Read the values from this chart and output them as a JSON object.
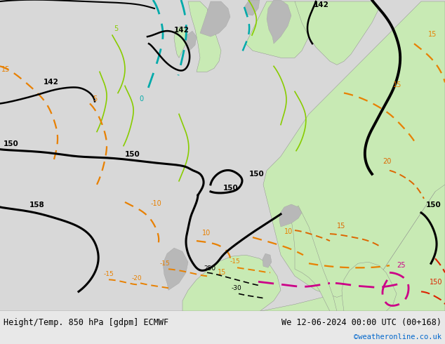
{
  "title_left": "Height/Temp. 850 hPa [gdpm] ECMWF",
  "title_right": "We 12-06-2024 00:00 UTC (00+168)",
  "credit": "©weatheronline.co.uk",
  "credit_color": "#0066cc",
  "ocean_color": "#d8d8d8",
  "land_green_color": "#c8eab4",
  "land_gray_color": "#b8b8b8",
  "fig_width": 6.34,
  "fig_height": 4.9,
  "dpi": 100,
  "bottom_bar_color": "#e8e8e8",
  "title_fontsize": 8.5,
  "credit_fontsize": 7.5
}
